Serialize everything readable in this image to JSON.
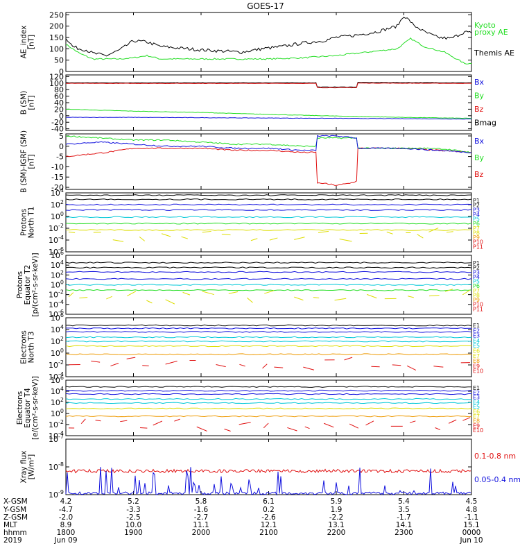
{
  "title": "GOES-17",
  "colors": {
    "black": "#000000",
    "green": "#22dd22",
    "blue": "#1010dd",
    "red": "#e01010",
    "cyan": "#00c8d8",
    "yellow": "#dddd00",
    "orange": "#ee9900"
  },
  "x_axis": {
    "tick_hours": [
      "1800",
      "1900",
      "2000",
      "2100",
      "2200",
      "2300",
      "0000"
    ],
    "row_labels": [
      "X-GSM",
      "Y-GSM",
      "Z-GSM",
      "MLT",
      "hhmm",
      "2019"
    ],
    "rows": [
      [
        "4.2",
        "5.2",
        "5.8",
        "6.1",
        "5.9",
        "5.4",
        "4.5"
      ],
      [
        "-4.7",
        "-3.3",
        "-1.6",
        "0.2",
        "1.9",
        "3.5",
        "4.8"
      ],
      [
        "-2.0",
        "-2.5",
        "-2.7",
        "-2.6",
        "-2.2",
        "-1.7",
        "-1.1"
      ],
      [
        "8.9",
        "10.0",
        "11.1",
        "12.1",
        "13.1",
        "14.1",
        "15.1"
      ],
      [
        "1800",
        "1900",
        "2000",
        "2100",
        "2200",
        "2300",
        "0000"
      ]
    ],
    "start_date": "Jun 09",
    "end_date": "Jun 10"
  },
  "chart_data": [
    {
      "type": "line",
      "id": "ae",
      "ylabel": "AE_index\n[nT]",
      "ylim": [
        0,
        260
      ],
      "yticks": [
        "0",
        "50",
        "100",
        "150",
        "200",
        "250"
      ],
      "legend": [
        {
          "text": "Kyoto",
          "color": "green"
        },
        {
          "text": "proxy AE",
          "color": "green"
        },
        {
          "text": "Themis AE",
          "color": "black"
        }
      ],
      "series": [
        {
          "name": "Kyoto proxy AE",
          "color": "green",
          "x": [
            18.0,
            18.2,
            18.4,
            18.6,
            18.8,
            19.0,
            19.2,
            19.4,
            19.6,
            20.0,
            20.5,
            21.0,
            21.5,
            22.0,
            22.3,
            22.6,
            22.9,
            23.1,
            23.3,
            23.6,
            23.9,
            24.0
          ],
          "y": [
            120,
            80,
            55,
            55,
            55,
            60,
            70,
            55,
            55,
            55,
            55,
            55,
            60,
            70,
            80,
            90,
            100,
            145,
            110,
            85,
            35,
            35
          ]
        },
        {
          "name": "Themis AE",
          "color": "black",
          "x": [
            18.0,
            18.1,
            18.2,
            18.3,
            18.4,
            18.6,
            18.8,
            19.0,
            19.2,
            19.4,
            19.6,
            19.8,
            20.0,
            20.3,
            20.6,
            20.9,
            21.2,
            21.5,
            21.8,
            22.0,
            22.3,
            22.6,
            22.9,
            23.0,
            23.1,
            23.15,
            23.2,
            23.3,
            23.5,
            23.7,
            23.9,
            24.0
          ],
          "y": [
            150,
            110,
            100,
            95,
            80,
            70,
            95,
            135,
            130,
            110,
            105,
            100,
            95,
            90,
            85,
            100,
            110,
            125,
            135,
            150,
            160,
            175,
            200,
            245,
            220,
            200,
            195,
            175,
            150,
            145,
            175,
            170
          ]
        }
      ]
    },
    {
      "type": "line",
      "id": "bsm",
      "ylabel": "B (SM)\n[nT]",
      "ylim": [
        -45,
        125
      ],
      "yticks": [
        "-40",
        "-20",
        "0",
        "20",
        "40",
        "60",
        "80",
        "100",
        "120"
      ],
      "legend": [
        {
          "text": "Bx",
          "color": "blue"
        },
        {
          "text": "By",
          "color": "green"
        },
        {
          "text": "Bz",
          "color": "red"
        },
        {
          "text": "Bmag",
          "color": "black"
        }
      ],
      "series": [
        {
          "name": "Bmag",
          "color": "black",
          "x": [
            18.0,
            21.7,
            21.72,
            22.3,
            22.32,
            24.0
          ],
          "y": [
            101,
            101,
            88,
            88,
            102,
            101
          ]
        },
        {
          "name": "Bz",
          "color": "red",
          "x": [
            18.0,
            21.7,
            21.72,
            22.3,
            22.32,
            24.0
          ],
          "y": [
            99,
            99,
            86,
            86,
            100,
            99
          ]
        },
        {
          "name": "By",
          "color": "green",
          "x": [
            18.0,
            19.0,
            20.0,
            21.0,
            22.0,
            23.0,
            24.0
          ],
          "y": [
            20,
            14,
            10,
            4,
            -1,
            -5,
            -8
          ]
        },
        {
          "name": "Bx",
          "color": "blue",
          "x": [
            18.0,
            19.0,
            20.0,
            21.0,
            22.0,
            23.0,
            24.0
          ],
          "y": [
            -5,
            -5,
            -6,
            -7,
            -8,
            -9,
            -10
          ]
        }
      ]
    },
    {
      "type": "line",
      "id": "bdiff",
      "ylabel": "B (SM)-IGRF (SM)\n[nT]",
      "ylim": [
        -21,
        6
      ],
      "yticks": [
        "-20",
        "-15",
        "-10",
        "-5",
        "0",
        "5"
      ],
      "legend": [
        {
          "text": "Bx",
          "color": "blue"
        },
        {
          "text": "By",
          "color": "green"
        },
        {
          "text": "Bz",
          "color": "red"
        }
      ],
      "series": [
        {
          "name": "Bz",
          "color": "red",
          "x": [
            18.0,
            18.3,
            18.6,
            19.0,
            19.5,
            20.0,
            20.5,
            21.0,
            21.5,
            21.7,
            21.72,
            21.8,
            22.0,
            22.2,
            22.3,
            22.32,
            22.5,
            23.0,
            23.5,
            24.0
          ],
          "y": [
            -5,
            -4,
            -3,
            -1,
            -1,
            -1,
            -2,
            -2,
            -3,
            -3,
            -18,
            -18,
            -19,
            -18,
            -17,
            -1,
            -1,
            -1,
            -2,
            -3
          ]
        },
        {
          "name": "By",
          "color": "green",
          "x": [
            18.0,
            18.5,
            19.0,
            19.5,
            20.0,
            20.5,
            21.0,
            21.5,
            21.7,
            21.72,
            22.0,
            22.3,
            22.32,
            22.6,
            23.0,
            23.5,
            24.0
          ],
          "y": [
            5,
            4,
            3,
            3,
            2,
            1,
            1,
            0,
            0,
            4,
            4,
            4,
            -1,
            -1,
            -1,
            -1,
            -3
          ]
        },
        {
          "name": "Bx",
          "color": "blue",
          "x": [
            18.0,
            18.5,
            19.0,
            19.5,
            20.0,
            20.5,
            21.0,
            21.5,
            21.7,
            21.72,
            22.0,
            22.3,
            22.32,
            22.6,
            23.0,
            23.5,
            24.0
          ],
          "y": [
            1,
            2,
            1,
            0,
            0,
            -1,
            -1,
            -2,
            -2,
            5,
            5,
            4,
            -1,
            -1,
            -1,
            -2,
            -3
          ]
        }
      ]
    },
    {
      "type": "line",
      "id": "p_north",
      "ylabel": "Protons\nNorth T1",
      "log": true,
      "ylim_exp": [
        -6,
        4
      ],
      "yticks": [
        "10^4",
        "10^2",
        "10^0",
        "10^-2",
        "10^-4",
        "10^-6"
      ],
      "legend": [
        {
          "text": "P1",
          "color": "black"
        },
        {
          "text": "P2",
          "color": "black"
        },
        {
          "text": "P3",
          "color": "blue"
        },
        {
          "text": "P4",
          "color": "blue"
        },
        {
          "text": "P5",
          "color": "cyan"
        },
        {
          "text": "P6",
          "color": "green"
        },
        {
          "text": "P7",
          "color": "yellow"
        },
        {
          "text": "P8",
          "color": "yellow"
        },
        {
          "text": "P9",
          "color": "orange"
        },
        {
          "text": "P10",
          "color": "red"
        },
        {
          "text": "P11",
          "color": "red"
        }
      ],
      "levels": [
        {
          "color": "black",
          "exp": 3.6
        },
        {
          "color": "black",
          "exp": 2.9
        },
        {
          "color": "blue",
          "exp": 2.0
        },
        {
          "color": "blue",
          "exp": 1.1
        },
        {
          "color": "cyan",
          "exp": -0.1
        },
        {
          "color": "green",
          "exp": -1.2
        },
        {
          "color": "yellow",
          "exp": -2.3
        },
        {
          "color": "yellow",
          "exp": -3.4,
          "dashed": true
        }
      ]
    },
    {
      "type": "line",
      "id": "p_equator",
      "ylabel": "Protons\nEquator T2\n[p/(cm²-s-sr-keV)]",
      "log": true,
      "ylim_exp": [
        -6,
        6
      ],
      "yticks": [
        "10^6",
        "10^4",
        "10^2",
        "10^0",
        "10^-2",
        "10^-4",
        "10^-6"
      ],
      "legend": [
        {
          "text": "P1",
          "color": "black"
        },
        {
          "text": "P2",
          "color": "black"
        },
        {
          "text": "P3",
          "color": "blue"
        },
        {
          "text": "P4",
          "color": "blue"
        },
        {
          "text": "P5",
          "color": "cyan"
        },
        {
          "text": "P6",
          "color": "green"
        },
        {
          "text": "P7",
          "color": "yellow"
        },
        {
          "text": "P8",
          "color": "yellow"
        },
        {
          "text": "P9",
          "color": "orange"
        },
        {
          "text": "P10",
          "color": "red"
        },
        {
          "text": "P11",
          "color": "red"
        }
      ],
      "levels": [
        {
          "color": "black",
          "exp": 4.5
        },
        {
          "color": "black",
          "exp": 3.5
        },
        {
          "color": "blue",
          "exp": 2.6
        },
        {
          "color": "blue",
          "exp": 1.2
        },
        {
          "color": "cyan",
          "exp": 0.0
        },
        {
          "color": "green",
          "exp": -1.1
        },
        {
          "color": "yellow",
          "exp": -2.3,
          "dashed": true
        }
      ]
    },
    {
      "type": "line",
      "id": "e_north",
      "ylabel": "Electrons\nNorth T3",
      "log": true,
      "ylim_exp": [
        -4,
        6
      ],
      "yticks": [
        "10^6",
        "10^4",
        "10^2",
        "10^0",
        "10^-2",
        "10^-4"
      ],
      "legend": [
        {
          "text": "E1",
          "color": "black"
        },
        {
          "text": "E2",
          "color": "blue"
        },
        {
          "text": "E3",
          "color": "blue"
        },
        {
          "text": "E4",
          "color": "cyan"
        },
        {
          "text": "E5",
          "color": "cyan"
        },
        {
          "text": "E6",
          "color": "yellow"
        },
        {
          "text": "E7",
          "color": "yellow"
        },
        {
          "text": "E8",
          "color": "orange"
        },
        {
          "text": "E9",
          "color": "red"
        },
        {
          "text": "E10",
          "color": "red"
        }
      ],
      "levels": [
        {
          "color": "black",
          "exp": 4.7
        },
        {
          "color": "blue",
          "exp": 4.2
        },
        {
          "color": "blue",
          "exp": 3.6
        },
        {
          "color": "cyan",
          "exp": 2.7
        },
        {
          "color": "cyan",
          "exp": 2.0
        },
        {
          "color": "yellow",
          "exp": 1.2
        },
        {
          "color": "orange",
          "exp": -0.2
        },
        {
          "color": "red",
          "exp": -1.8,
          "dashed": true
        }
      ]
    },
    {
      "type": "line",
      "id": "e_equator",
      "ylabel": "Electrons\nEquator T4\n[e/(cm²-s-sr-keV)]",
      "log": true,
      "ylim_exp": [
        -4,
        6
      ],
      "yticks": [
        "10^6",
        "10^4",
        "10^2",
        "10^0",
        "10^-2",
        "10^-4"
      ],
      "legend": [
        {
          "text": "E1",
          "color": "black"
        },
        {
          "text": "E2",
          "color": "blue"
        },
        {
          "text": "E3",
          "color": "blue"
        },
        {
          "text": "E4",
          "color": "cyan"
        },
        {
          "text": "E5",
          "color": "cyan"
        },
        {
          "text": "E6",
          "color": "yellow"
        },
        {
          "text": "E7",
          "color": "yellow"
        },
        {
          "text": "E8",
          "color": "orange"
        },
        {
          "text": "E9",
          "color": "red"
        },
        {
          "text": "E10",
          "color": "red"
        }
      ],
      "levels": [
        {
          "color": "black",
          "exp": 4.8
        },
        {
          "color": "blue",
          "exp": 4.1
        },
        {
          "color": "blue",
          "exp": 3.5
        },
        {
          "color": "cyan",
          "exp": 2.6
        },
        {
          "color": "cyan",
          "exp": 1.9
        },
        {
          "color": "yellow",
          "exp": 0.9
        },
        {
          "color": "orange",
          "exp": -0.5
        },
        {
          "color": "red",
          "exp": -2.0,
          "dashed": true
        }
      ]
    },
    {
      "type": "line",
      "id": "xray",
      "ylabel": "Xray flux\n[W/m²]",
      "log": true,
      "ylim_exp": [
        -9,
        -7
      ],
      "yticks": [
        "10^-7",
        "10^-8",
        "10^-9"
      ],
      "legend": [
        {
          "text": "0.1-0.8 nm",
          "color": "red"
        },
        {
          "text": "0.05-0.4 nm",
          "color": "blue"
        }
      ],
      "levels": [
        {
          "color": "red",
          "exp": -8.15,
          "noisy": true
        },
        {
          "color": "blue",
          "exp": -9.0,
          "spiky": true
        }
      ]
    }
  ]
}
